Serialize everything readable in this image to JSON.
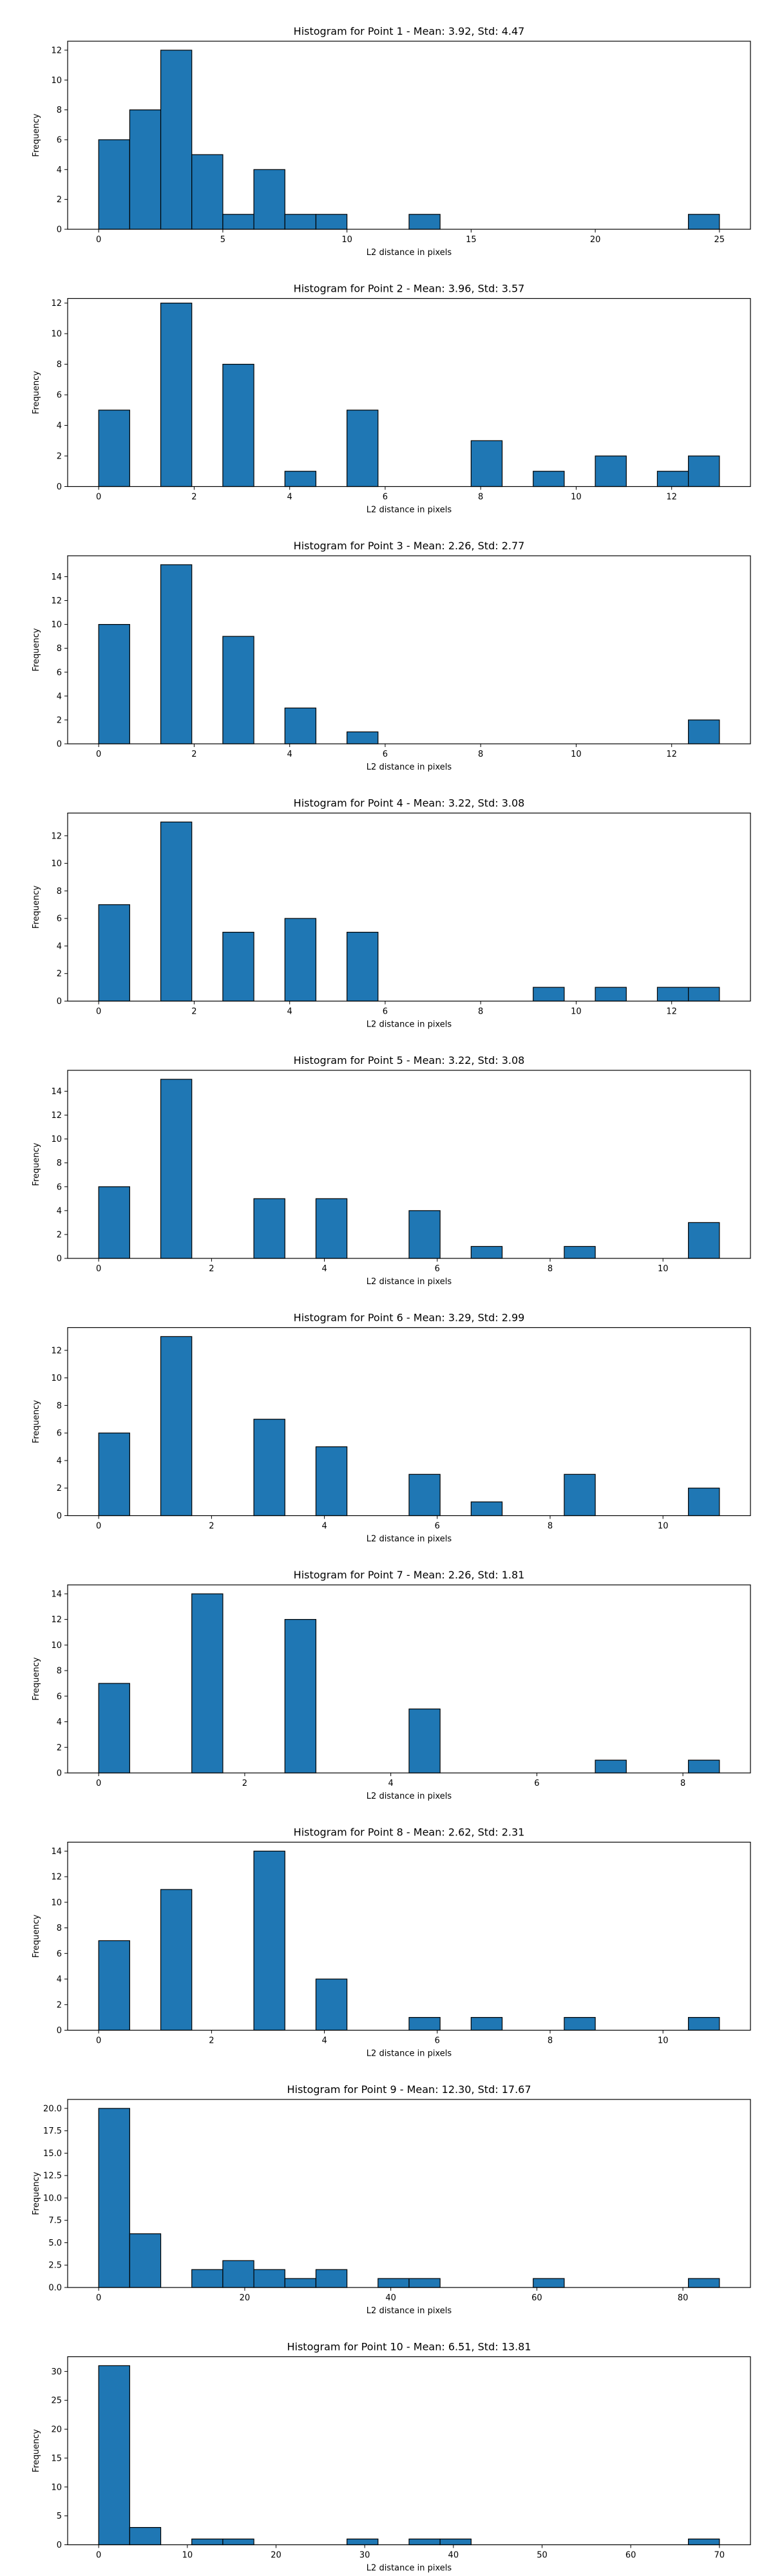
{
  "chart_data": [
    {
      "type": "bar",
      "title": "Histogram for Point 1 - Mean: 3.92, Std: 4.47",
      "xlabel": "L2 distance in pixels",
      "ylabel": "Frequency",
      "xlim": [
        -1.25,
        26.25
      ],
      "ylim": [
        0,
        12.6
      ],
      "xticks": [
        0,
        5,
        10,
        15,
        20,
        25
      ],
      "xtick_labels": [
        "0",
        "5",
        "10",
        "15",
        "20",
        "25"
      ],
      "yticks": [
        0,
        2,
        4,
        6,
        8,
        10,
        12
      ],
      "ytick_labels": [
        "0",
        "2",
        "4",
        "6",
        "8",
        "10",
        "12"
      ],
      "bin_edges": [
        0,
        1.25,
        2.5,
        3.75,
        5,
        6.25,
        7.5,
        8.75,
        10,
        11.25,
        12.5,
        13.75,
        15,
        16.25,
        17.5,
        18.75,
        20,
        21.25,
        22.5,
        23.75,
        25
      ],
      "values": [
        6,
        8,
        12,
        5,
        1,
        4,
        1,
        1,
        0,
        0,
        1,
        0,
        0,
        0,
        0,
        0,
        0,
        0,
        0,
        1
      ]
    },
    {
      "type": "bar",
      "title": "Histogram for Point 2 - Mean: 3.96, Std: 3.57",
      "xlabel": "L2 distance in pixels",
      "ylabel": "Frequency",
      "xlim": [
        -0.65,
        13.65
      ],
      "ylim": [
        0,
        12.3
      ],
      "xticks": [
        0,
        2,
        4,
        6,
        8,
        10,
        12
      ],
      "xtick_labels": [
        "0",
        "2",
        "4",
        "6",
        "8",
        "10",
        "12"
      ],
      "yticks": [
        0,
        2,
        4,
        6,
        8,
        10,
        12
      ],
      "ytick_labels": [
        "0",
        "2",
        "4",
        "6",
        "8",
        "10",
        "12"
      ],
      "bin_edges": [
        0,
        0.65,
        1.3,
        1.95,
        2.6,
        3.25,
        3.9,
        4.55,
        5.2,
        5.85,
        6.5,
        7.15,
        7.8,
        8.45,
        9.1,
        9.75,
        10.4,
        11.05,
        11.7,
        12.35,
        13
      ],
      "values": [
        5,
        0,
        12,
        0,
        8,
        0,
        1,
        0,
        5,
        0,
        0,
        0,
        3,
        0,
        1,
        0,
        2,
        0,
        1,
        2
      ]
    },
    {
      "type": "bar",
      "title": "Histogram for Point 3 - Mean: 2.26, Std: 2.77",
      "xlabel": "L2 distance in pixels",
      "ylabel": "Frequency",
      "xlim": [
        -0.65,
        13.65
      ],
      "ylim": [
        0,
        15.75
      ],
      "xticks": [
        0,
        2,
        4,
        6,
        8,
        10,
        12
      ],
      "xtick_labels": [
        "0",
        "2",
        "4",
        "6",
        "8",
        "10",
        "12"
      ],
      "yticks": [
        0,
        2,
        4,
        6,
        8,
        10,
        12,
        14
      ],
      "ytick_labels": [
        "0",
        "2",
        "4",
        "6",
        "8",
        "10",
        "12",
        "14"
      ],
      "bin_edges": [
        0,
        0.65,
        1.3,
        1.95,
        2.6,
        3.25,
        3.9,
        4.55,
        5.2,
        5.85,
        6.5,
        7.15,
        7.8,
        8.45,
        9.1,
        9.75,
        10.4,
        11.05,
        11.7,
        12.35,
        13
      ],
      "values": [
        10,
        0,
        15,
        0,
        9,
        0,
        3,
        0,
        1,
        0,
        0,
        0,
        0,
        0,
        0,
        0,
        0,
        0,
        0,
        2
      ]
    },
    {
      "type": "bar",
      "title": "Histogram for Point 4 - Mean: 3.22, Std: 3.08",
      "xlabel": "L2 distance in pixels",
      "ylabel": "Frequency",
      "xlim": [
        -0.65,
        13.65
      ],
      "ylim": [
        0,
        13.65
      ],
      "xticks": [
        0,
        2,
        4,
        6,
        8,
        10,
        12
      ],
      "xtick_labels": [
        "0",
        "2",
        "4",
        "6",
        "8",
        "10",
        "12"
      ],
      "yticks": [
        0,
        2,
        4,
        6,
        8,
        10,
        12
      ],
      "ytick_labels": [
        "0",
        "2",
        "4",
        "6",
        "8",
        "10",
        "12"
      ],
      "bin_edges": [
        0,
        0.65,
        1.3,
        1.95,
        2.6,
        3.25,
        3.9,
        4.55,
        5.2,
        5.85,
        6.5,
        7.15,
        7.8,
        8.45,
        9.1,
        9.75,
        10.4,
        11.05,
        11.7,
        12.35,
        13
      ],
      "values": [
        7,
        0,
        13,
        0,
        5,
        0,
        6,
        0,
        5,
        0,
        0,
        0,
        0,
        0,
        1,
        0,
        1,
        0,
        1,
        1
      ]
    },
    {
      "type": "bar",
      "title": "Histogram for Point 5 - Mean: 3.22, Std: 3.08",
      "xlabel": "L2 distance in pixels",
      "ylabel": "Frequency",
      "xlim": [
        -0.55,
        11.55
      ],
      "ylim": [
        0,
        15.75
      ],
      "xticks": [
        0,
        2,
        4,
        6,
        8,
        10
      ],
      "xtick_labels": [
        "0",
        "2",
        "4",
        "6",
        "8",
        "10"
      ],
      "yticks": [
        0,
        2,
        4,
        6,
        8,
        10,
        12,
        14
      ],
      "ytick_labels": [
        "0",
        "2",
        "4",
        "6",
        "8",
        "10",
        "12",
        "14"
      ],
      "bin_edges": [
        0,
        0.55,
        1.1,
        1.65,
        2.2,
        2.75,
        3.3,
        3.85,
        4.4,
        4.95,
        5.5,
        6.05,
        6.6,
        7.15,
        7.7,
        8.25,
        8.8,
        9.35,
        9.9,
        10.45,
        11
      ],
      "values": [
        6,
        0,
        15,
        0,
        0,
        5,
        0,
        5,
        0,
        0,
        4,
        0,
        1,
        0,
        0,
        1,
        0,
        0,
        0,
        3
      ]
    },
    {
      "type": "bar",
      "title": "Histogram for Point 6 - Mean: 3.29, Std: 2.99",
      "xlabel": "L2 distance in pixels",
      "ylabel": "Frequency",
      "xlim": [
        -0.55,
        11.55
      ],
      "ylim": [
        0,
        13.65
      ],
      "xticks": [
        0,
        2,
        4,
        6,
        8,
        10
      ],
      "xtick_labels": [
        "0",
        "2",
        "4",
        "6",
        "8",
        "10"
      ],
      "yticks": [
        0,
        2,
        4,
        6,
        8,
        10,
        12
      ],
      "ytick_labels": [
        "0",
        "2",
        "4",
        "6",
        "8",
        "10",
        "12"
      ],
      "bin_edges": [
        0,
        0.55,
        1.1,
        1.65,
        2.2,
        2.75,
        3.3,
        3.85,
        4.4,
        4.95,
        5.5,
        6.05,
        6.6,
        7.15,
        7.7,
        8.25,
        8.8,
        9.35,
        9.9,
        10.45,
        11
      ],
      "values": [
        6,
        0,
        13,
        0,
        0,
        7,
        0,
        5,
        0,
        0,
        3,
        0,
        1,
        0,
        0,
        3,
        0,
        0,
        0,
        2
      ]
    },
    {
      "type": "bar",
      "title": "Histogram for Point 7 - Mean: 2.26, Std: 1.81",
      "xlabel": "L2 distance in pixels",
      "ylabel": "Frequency",
      "xlim": [
        -0.425,
        8.925
      ],
      "ylim": [
        0,
        14.7
      ],
      "xticks": [
        0,
        2,
        4,
        6,
        8
      ],
      "xtick_labels": [
        "0",
        "2",
        "4",
        "6",
        "8"
      ],
      "yticks": [
        0,
        2,
        4,
        6,
        8,
        10,
        12,
        14
      ],
      "ytick_labels": [
        "0",
        "2",
        "4",
        "6",
        "8",
        "10",
        "12",
        "14"
      ],
      "bin_edges": [
        0,
        0.425,
        0.85,
        1.275,
        1.7,
        2.125,
        2.55,
        2.975,
        3.4,
        3.825,
        4.25,
        4.675,
        5.1,
        5.525,
        5.95,
        6.375,
        6.8,
        7.225,
        7.65,
        8.075,
        8.5
      ],
      "values": [
        7,
        0,
        0,
        14,
        0,
        0,
        12,
        0,
        0,
        0,
        5,
        0,
        0,
        0,
        0,
        0,
        1,
        0,
        0,
        1
      ]
    },
    {
      "type": "bar",
      "title": "Histogram for Point 8 - Mean: 2.62, Std: 2.31",
      "xlabel": "L2 distance in pixels",
      "ylabel": "Frequency",
      "xlim": [
        -0.55,
        11.55
      ],
      "ylim": [
        0,
        14.7
      ],
      "xticks": [
        0,
        2,
        4,
        6,
        8,
        10
      ],
      "xtick_labels": [
        "0",
        "2",
        "4",
        "6",
        "8",
        "10"
      ],
      "yticks": [
        0,
        2,
        4,
        6,
        8,
        10,
        12,
        14
      ],
      "ytick_labels": [
        "0",
        "2",
        "4",
        "6",
        "8",
        "10",
        "12",
        "14"
      ],
      "bin_edges": [
        0,
        0.55,
        1.1,
        1.65,
        2.2,
        2.75,
        3.3,
        3.85,
        4.4,
        4.95,
        5.5,
        6.05,
        6.6,
        7.15,
        7.7,
        8.25,
        8.8,
        9.35,
        9.9,
        10.45,
        11
      ],
      "values": [
        7,
        0,
        11,
        0,
        0,
        14,
        0,
        4,
        0,
        0,
        1,
        0,
        1,
        0,
        0,
        1,
        0,
        0,
        0,
        1
      ]
    },
    {
      "type": "bar",
      "title": "Histogram for Point 9 - Mean: 12.30, Std: 17.67",
      "xlabel": "L2 distance in pixels",
      "ylabel": "Frequency",
      "xlim": [
        -4.25,
        89.25
      ],
      "ylim": [
        0,
        21
      ],
      "xticks": [
        0,
        20,
        40,
        60,
        80
      ],
      "xtick_labels": [
        "0",
        "20",
        "40",
        "60",
        "80"
      ],
      "yticks": [
        0,
        2.5,
        5,
        7.5,
        10,
        12.5,
        15,
        17.5,
        20
      ],
      "ytick_labels": [
        "0.0",
        "2.5",
        "5.0",
        "7.5",
        "10.0",
        "12.5",
        "15.0",
        "17.5",
        "20.0"
      ],
      "bin_edges": [
        0,
        4.25,
        8.5,
        12.75,
        17,
        21.25,
        25.5,
        29.75,
        34,
        38.25,
        42.5,
        46.75,
        51,
        55.25,
        59.5,
        63.75,
        68,
        72.25,
        76.5,
        80.75,
        85
      ],
      "values": [
        20,
        6,
        0,
        2,
        3,
        2,
        1,
        2,
        0,
        1,
        1,
        0,
        0,
        0,
        1,
        0,
        0,
        0,
        0,
        1
      ]
    },
    {
      "type": "bar",
      "title": "Histogram for Point 10 - Mean: 6.51, Std: 13.81",
      "xlabel": "L2 distance in pixels",
      "ylabel": "Frequency",
      "xlim": [
        -3.5,
        73.5
      ],
      "ylim": [
        0,
        32.55
      ],
      "xticks": [
        0,
        10,
        20,
        30,
        40,
        50,
        60,
        70
      ],
      "xtick_labels": [
        "0",
        "10",
        "20",
        "30",
        "40",
        "50",
        "60",
        "70"
      ],
      "yticks": [
        0,
        5,
        10,
        15,
        20,
        25,
        30
      ],
      "ytick_labels": [
        "0",
        "5",
        "10",
        "15",
        "20",
        "25",
        "30"
      ],
      "bin_edges": [
        0,
        3.5,
        7,
        10.5,
        14,
        17.5,
        21,
        24.5,
        28,
        31.5,
        35,
        38.5,
        42,
        45.5,
        49,
        52.5,
        56,
        59.5,
        63,
        66.5,
        70
      ],
      "values": [
        31,
        3,
        0,
        1,
        1,
        0,
        0,
        0,
        1,
        0,
        1,
        1,
        0,
        0,
        0,
        0,
        0,
        0,
        0,
        1
      ]
    }
  ],
  "colors": {
    "bar_fill": "#1f77b4",
    "bar_edge": "#000000",
    "axes": "#000000",
    "background": "#ffffff"
  }
}
